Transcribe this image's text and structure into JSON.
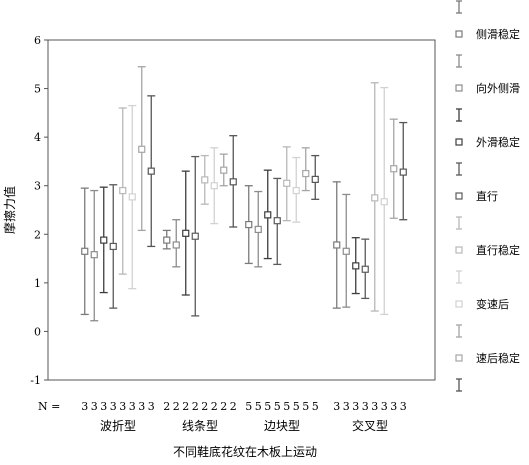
{
  "chart_data": {
    "type": "errorbar",
    "xlabel": "不同鞋底花纹在木板上运动",
    "ylabel": "摩擦力值",
    "ylim": [
      -1,
      6
    ],
    "yticks": [
      -1,
      0,
      1,
      2,
      3,
      4,
      5,
      6
    ],
    "categories": [
      "波折型",
      "线条型",
      "边块型",
      "交叉型"
    ],
    "n_label": "N =",
    "n_values": [
      [
        "3",
        "3",
        "3",
        "3",
        "3",
        "3",
        "3",
        "3"
      ],
      [
        "2",
        "2",
        "2",
        "2",
        "2",
        "2",
        "2",
        "2"
      ],
      [
        "5",
        "5",
        "5",
        "5",
        "5",
        "5",
        "5",
        "5"
      ],
      [
        "3",
        "3",
        "3",
        "3",
        "3",
        "3",
        "3",
        "3"
      ]
    ],
    "series": [
      {
        "name": "侧滑稳定",
        "color": "#7a7a7a",
        "means": [
          1.65,
          1.88,
          2.2,
          1.78
        ],
        "low": [
          0.35,
          1.7,
          1.4,
          0.48
        ],
        "high": [
          2.95,
          2.08,
          3.0,
          3.08
        ]
      },
      {
        "name": "向外侧滑",
        "color": "#8c8c8c",
        "means": [
          1.58,
          1.78,
          2.1,
          1.65
        ],
        "low": [
          0.22,
          1.33,
          1.33,
          0.5
        ],
        "high": [
          2.9,
          2.3,
          2.88,
          2.82
        ]
      },
      {
        "name": "外滑稳定",
        "color": "#3d3d3d",
        "means": [
          1.88,
          2.02,
          2.4,
          1.35
        ],
        "low": [
          0.8,
          0.75,
          1.5,
          0.78
        ],
        "high": [
          2.97,
          3.3,
          3.32,
          1.93
        ]
      },
      {
        "name": "直行",
        "color": "#5a5a5a",
        "means": [
          1.75,
          1.96,
          2.28,
          1.28
        ],
        "low": [
          0.48,
          0.32,
          1.38,
          0.68
        ],
        "high": [
          3.02,
          3.6,
          3.15,
          1.9
        ]
      },
      {
        "name": "直行稳定",
        "color": "#b8b8b8",
        "means": [
          2.9,
          3.12,
          3.05,
          2.75
        ],
        "low": [
          1.18,
          2.62,
          2.28,
          0.42
        ],
        "high": [
          4.6,
          3.62,
          3.8,
          5.12
        ]
      },
      {
        "name": "变速后",
        "color": "#d2d2d2",
        "means": [
          2.77,
          3.0,
          2.9,
          2.67
        ],
        "low": [
          0.88,
          2.22,
          2.25,
          0.35
        ],
        "high": [
          4.65,
          3.78,
          3.58,
          5.02
        ]
      },
      {
        "name": "速后稳定",
        "color": "#a5a5a5",
        "means": [
          3.75,
          3.32,
          3.25,
          3.35
        ],
        "low": [
          2.08,
          3.0,
          2.9,
          2.33
        ],
        "high": [
          5.45,
          3.65,
          3.78,
          4.37
        ]
      },
      {
        "name": "",
        "color": "#555555",
        "means": [
          3.3,
          3.08,
          3.13,
          3.28
        ],
        "low": [
          1.75,
          2.15,
          2.72,
          2.3
        ],
        "high": [
          4.85,
          4.03,
          3.62,
          4.3
        ]
      }
    ],
    "legend_position": "right"
  }
}
